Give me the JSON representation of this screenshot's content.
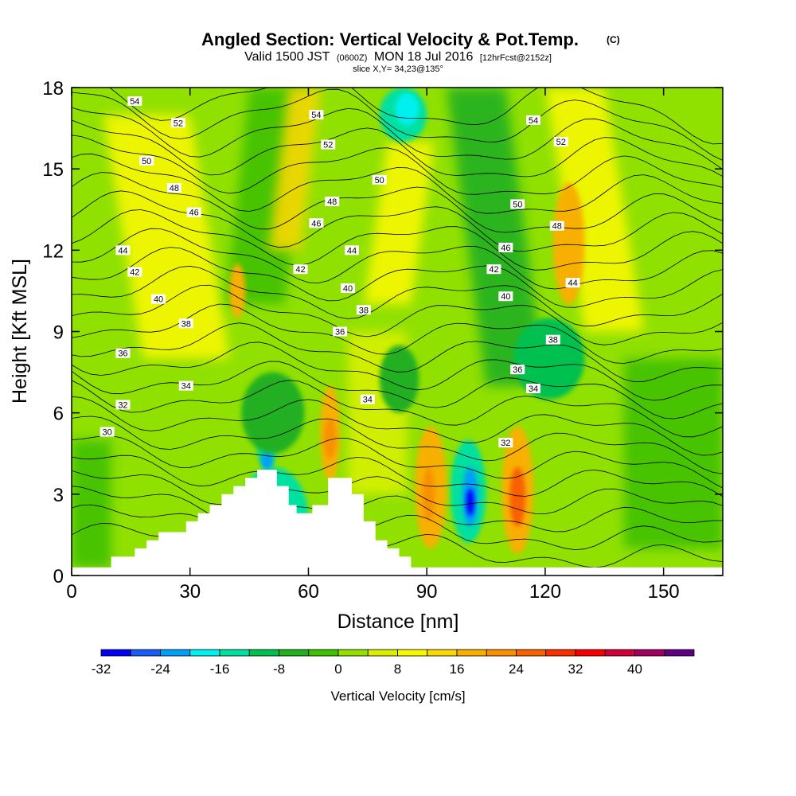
{
  "title": {
    "main": "Angled Section: Vertical Velocity & Pot.Temp.",
    "main_suffix": "(C)",
    "valid_prefix": "Valid 1500 JST",
    "valid_zulu": "(0600Z)",
    "valid_date": "MON 18 Jul 2016",
    "forecast": "[12hrFcst@2152z]",
    "slice": "slice X,Y= 34,23@135°"
  },
  "chart_data": {
    "type": "heatmap",
    "xlabel": "Distance [nm]",
    "ylabel": "Height [Kft MSL]",
    "xlim": [
      0,
      165
    ],
    "ylim": [
      0,
      18
    ],
    "x_ticks": [
      "0",
      "30",
      "60",
      "90",
      "120",
      "150"
    ],
    "x_tick_values": [
      0,
      30,
      60,
      90,
      120,
      150
    ],
    "y_ticks": [
      "0",
      "3",
      "6",
      "9",
      "12",
      "15",
      "18"
    ],
    "y_tick_values": [
      0,
      3,
      6,
      9,
      12,
      15,
      18
    ],
    "terrain": [
      [
        0,
        0.3
      ],
      [
        10,
        0.3
      ],
      [
        10,
        0.7
      ],
      [
        16,
        0.7
      ],
      [
        16,
        1.0
      ],
      [
        19,
        1.0
      ],
      [
        19,
        1.3
      ],
      [
        22,
        1.3
      ],
      [
        22,
        1.6
      ],
      [
        29,
        1.6
      ],
      [
        29,
        2.0
      ],
      [
        32,
        2.0
      ],
      [
        32,
        2.3
      ],
      [
        35,
        2.3
      ],
      [
        35,
        2.6
      ],
      [
        38,
        2.6
      ],
      [
        38,
        3.0
      ],
      [
        41,
        3.0
      ],
      [
        41,
        3.3
      ],
      [
        44,
        3.3
      ],
      [
        44,
        3.6
      ],
      [
        47,
        3.6
      ],
      [
        47,
        3.9
      ],
      [
        52,
        3.9
      ],
      [
        52,
        3.3
      ],
      [
        55,
        3.3
      ],
      [
        55,
        2.6
      ],
      [
        57,
        2.6
      ],
      [
        57,
        2.3
      ],
      [
        61,
        2.3
      ],
      [
        61,
        2.6
      ],
      [
        65,
        2.6
      ],
      [
        65,
        3.6
      ],
      [
        71,
        3.6
      ],
      [
        71,
        3.0
      ],
      [
        74,
        3.0
      ],
      [
        74,
        2.0
      ],
      [
        77,
        2.0
      ],
      [
        77,
        1.3
      ],
      [
        80,
        1.3
      ],
      [
        80,
        1.0
      ],
      [
        83,
        1.0
      ],
      [
        83,
        0.7
      ],
      [
        86,
        0.7
      ],
      [
        86,
        0.3
      ],
      [
        165,
        0.3
      ]
    ],
    "vertical_velocity_cells": [
      {
        "x": [
          42,
          60
        ],
        "y": [
          0.3,
          4.0
        ],
        "v": -16
      },
      {
        "x": [
          47,
          52
        ],
        "y": [
          4.0,
          5.4
        ],
        "v": -16
      },
      {
        "x": [
          48,
          51
        ],
        "y": [
          3.9,
          4.6
        ],
        "v": -24
      },
      {
        "x": [
          43,
          59
        ],
        "y": [
          4.5,
          7.5
        ],
        "v": -8
      },
      {
        "x": [
          96,
          105
        ],
        "y": [
          1.2,
          5.0
        ],
        "v": -16
      },
      {
        "x": [
          99,
          103
        ],
        "y": [
          1.8,
          4.0
        ],
        "v": -24
      },
      {
        "x": [
          100,
          102
        ],
        "y": [
          2.2,
          3.2
        ],
        "v": -30
      },
      {
        "x": [
          63,
          68
        ],
        "y": [
          3.5,
          7.0
        ],
        "v": 16
      },
      {
        "x": [
          64,
          67
        ],
        "y": [
          4.3,
          5.8
        ],
        "v": 20
      },
      {
        "x": [
          87,
          95
        ],
        "y": [
          1.0,
          5.5
        ],
        "v": 16
      },
      {
        "x": [
          89,
          92
        ],
        "y": [
          2.0,
          4.0
        ],
        "v": 22
      },
      {
        "x": [
          109,
          117
        ],
        "y": [
          0.8,
          5.5
        ],
        "v": 18
      },
      {
        "x": [
          111,
          115
        ],
        "y": [
          1.8,
          4.0
        ],
        "v": 26
      },
      {
        "x": [
          40,
          44
        ],
        "y": [
          9.5,
          11.5
        ],
        "v": 16
      },
      {
        "x": [
          122,
          130
        ],
        "y": [
          10.0,
          14.5
        ],
        "v": 16
      },
      {
        "x": [
          78,
          88
        ],
        "y": [
          6.0,
          8.5
        ],
        "v": -6
      },
      {
        "x": [
          78,
          90
        ],
        "y": [
          16.0,
          18.0
        ],
        "v": -14
      },
      {
        "x": [
          82,
          88
        ],
        "y": [
          16.6,
          17.8
        ],
        "v": -18
      },
      {
        "x": [
          112,
          130
        ],
        "y": [
          6.5,
          9.5
        ],
        "v": -10
      }
    ],
    "theta_contour_labels": [
      {
        "text": "54",
        "x": 16,
        "y": 17.5
      },
      {
        "text": "52",
        "x": 27,
        "y": 16.7
      },
      {
        "text": "50",
        "x": 19,
        "y": 15.3
      },
      {
        "text": "48",
        "x": 26,
        "y": 14.3
      },
      {
        "text": "46",
        "x": 31,
        "y": 13.4
      },
      {
        "text": "44",
        "x": 13,
        "y": 12.0
      },
      {
        "text": "42",
        "x": 16,
        "y": 11.2
      },
      {
        "text": "40",
        "x": 22,
        "y": 10.2
      },
      {
        "text": "38",
        "x": 29,
        "y": 9.3
      },
      {
        "text": "36",
        "x": 13,
        "y": 8.2
      },
      {
        "text": "34",
        "x": 29,
        "y": 7.0
      },
      {
        "text": "32",
        "x": 13,
        "y": 6.3
      },
      {
        "text": "30",
        "x": 9,
        "y": 5.3
      },
      {
        "text": "54",
        "x": 62,
        "y": 17.0
      },
      {
        "text": "52",
        "x": 65,
        "y": 15.9
      },
      {
        "text": "50",
        "x": 78,
        "y": 14.6
      },
      {
        "text": "48",
        "x": 66,
        "y": 13.8
      },
      {
        "text": "46",
        "x": 62,
        "y": 13.0
      },
      {
        "text": "44",
        "x": 71,
        "y": 12.0
      },
      {
        "text": "42",
        "x": 58,
        "y": 11.3
      },
      {
        "text": "40",
        "x": 70,
        "y": 10.6
      },
      {
        "text": "38",
        "x": 74,
        "y": 9.8
      },
      {
        "text": "36",
        "x": 68,
        "y": 9.0
      },
      {
        "text": "34",
        "x": 75,
        "y": 6.5
      },
      {
        "text": "54",
        "x": 117,
        "y": 16.8
      },
      {
        "text": "52",
        "x": 124,
        "y": 16.0
      },
      {
        "text": "50",
        "x": 113,
        "y": 13.7
      },
      {
        "text": "48",
        "x": 123,
        "y": 12.9
      },
      {
        "text": "46",
        "x": 110,
        "y": 12.1
      },
      {
        "text": "44",
        "x": 127,
        "y": 10.8
      },
      {
        "text": "42",
        "x": 107,
        "y": 11.3
      },
      {
        "text": "40",
        "x": 110,
        "y": 10.3
      },
      {
        "text": "38",
        "x": 122,
        "y": 8.7
      },
      {
        "text": "36",
        "x": 113,
        "y": 7.6
      },
      {
        "text": "34",
        "x": 117,
        "y": 6.9
      },
      {
        "text": "32",
        "x": 110,
        "y": 4.9
      }
    ],
    "colorbar": {
      "label": "Vertical Velocity [cm/s]",
      "min": -32,
      "step": 4,
      "colors": [
        "#0000f8",
        "#1a5cf8",
        "#00a0f8",
        "#00f0f0",
        "#00e0a0",
        "#00c050",
        "#20b020",
        "#40c000",
        "#90e000",
        "#d8f000",
        "#f8f800",
        "#f8d800",
        "#f8b000",
        "#f89000",
        "#f86000",
        "#f83000",
        "#f80000",
        "#d0003a",
        "#a00060",
        "#600080"
      ],
      "tick_labels": [
        "-32",
        "-24",
        "-16",
        "-8",
        "0",
        "8",
        "16",
        "24",
        "32",
        "40"
      ],
      "tick_values": [
        -32,
        -24,
        -16,
        -8,
        0,
        8,
        16,
        24,
        32,
        40
      ]
    }
  }
}
